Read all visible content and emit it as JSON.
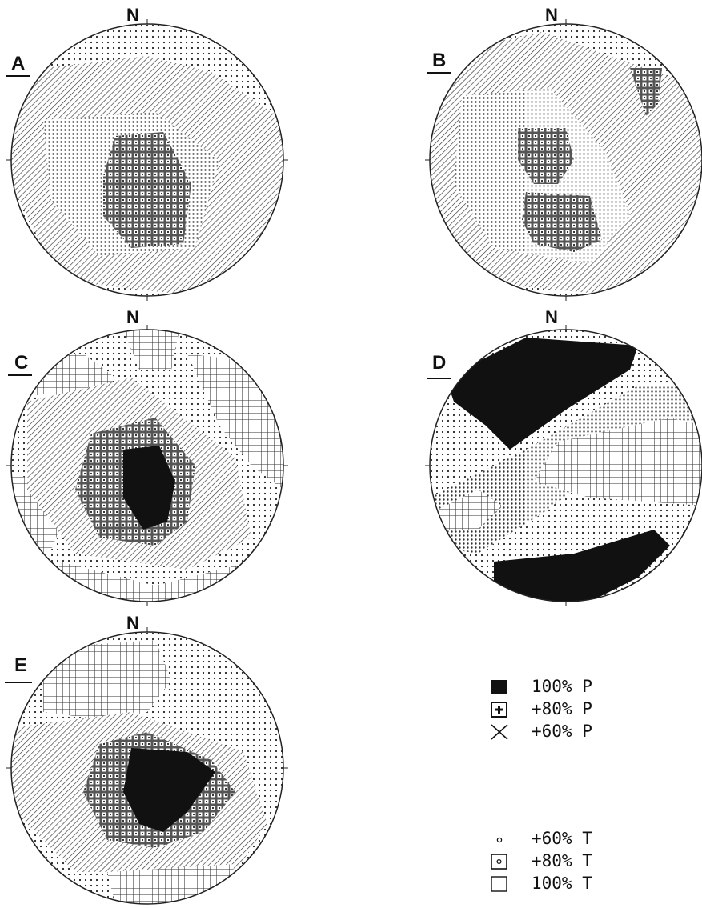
{
  "panels": [
    {
      "id": "A",
      "letter": "A",
      "north": "N"
    },
    {
      "id": "B",
      "letter": "B",
      "north": "N"
    },
    {
      "id": "C",
      "letter": "C",
      "north": "N"
    },
    {
      "id": "D",
      "letter": "D",
      "north": "N"
    },
    {
      "id": "E",
      "letter": "E",
      "north": "N"
    }
  ],
  "legend": {
    "p_items": [
      {
        "symbol": "solid-black-square",
        "label": "100% P"
      },
      {
        "symbol": "boxed-plus",
        "label": "+80% P"
      },
      {
        "symbol": "x-cross",
        "label": "+60% P"
      }
    ],
    "t_items": [
      {
        "symbol": "small-circle",
        "label": "+60% T"
      },
      {
        "symbol": "boxed-dot",
        "label": "+80% T"
      },
      {
        "symbol": "open-square",
        "label": "100% T"
      }
    ]
  }
}
